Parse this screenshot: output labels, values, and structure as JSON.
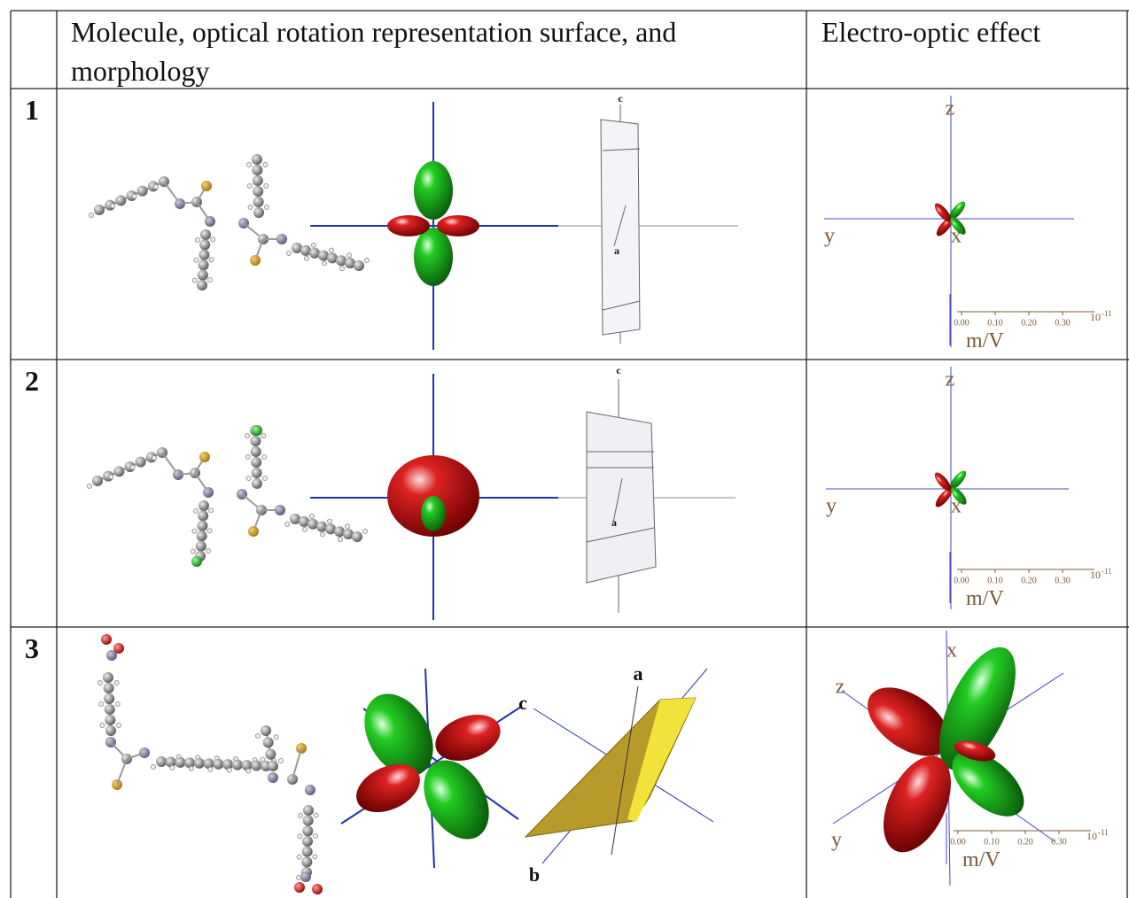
{
  "table": {
    "header": [
      "Molecule, optical rotation representation surface, and morphology",
      "Electro-optic effect"
    ],
    "rows": [
      {
        "number": "1",
        "morphology_labels": [
          "c",
          "a"
        ],
        "eo_axis_labels": [
          "z",
          "y",
          "x"
        ],
        "eo_scale": {
          "ticks": [
            "0.00",
            "0.10",
            "0.20",
            "0.30"
          ],
          "power_base": "10",
          "power_exponent": "-11",
          "unit": "m/V"
        }
      },
      {
        "number": "2",
        "morphology_labels": [
          "c",
          "a"
        ],
        "eo_axis_labels": [
          "z",
          "y",
          "x"
        ],
        "eo_scale": {
          "ticks": [
            "0.00",
            "0.10",
            "0.20",
            "0.30"
          ],
          "power_base": "10",
          "power_exponent": "-11",
          "unit": "m/V"
        }
      },
      {
        "number": "3",
        "morphology_labels": [
          "a",
          "c",
          "b"
        ],
        "eo_axis_labels": [
          "x",
          "z",
          "y"
        ],
        "eo_scale": {
          "ticks": [
            "0.00",
            "0.10",
            "0.20",
            "0.30"
          ],
          "power_base": "10",
          "power_exponent": "-11",
          "unit": "m/V"
        }
      }
    ]
  }
}
